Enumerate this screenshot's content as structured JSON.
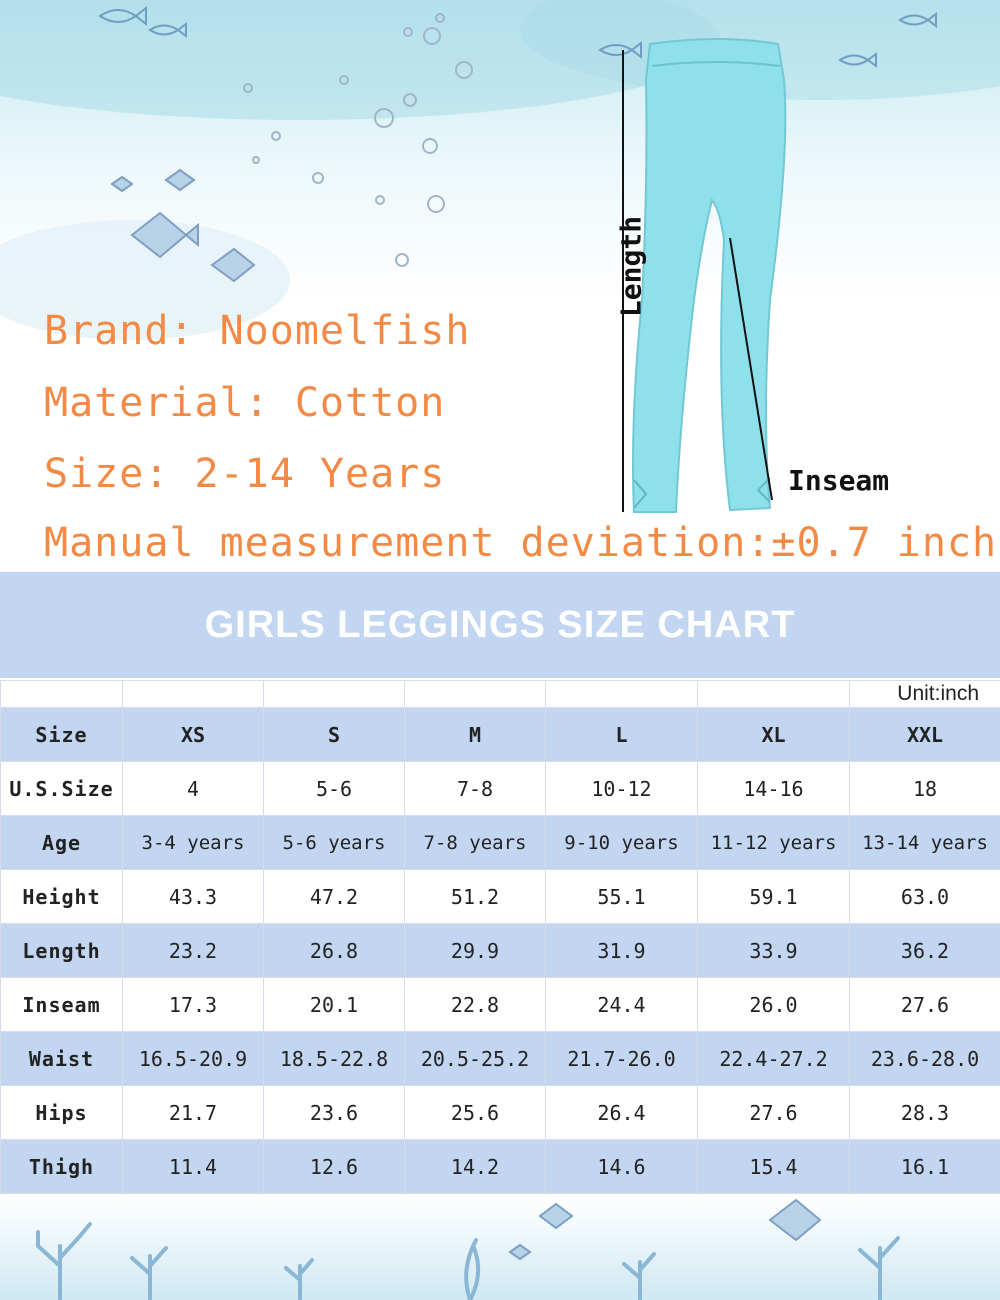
{
  "product_info": {
    "brand": "Brand: Noomelfish",
    "material": "Material: Cotton",
    "size": "Size: 2-14 Years",
    "deviation": "Manual measurement deviation:±0.7 inch"
  },
  "diagram": {
    "length_label": "Length",
    "inseam_label": "Inseam",
    "leggings_color": "#8ee0ea"
  },
  "chart": {
    "title": "GIRLS LEGGINGS SIZE CHART",
    "unit": "Unit:inch",
    "header": {
      "label": "Size",
      "values": [
        "XS",
        "S",
        "M",
        "L",
        "XL",
        "XXL"
      ]
    },
    "rows": [
      {
        "label": "U.S.Size",
        "values": [
          "4",
          "5-6",
          "7-8",
          "10-12",
          "14-16",
          "18"
        ]
      },
      {
        "label": "Age",
        "values": [
          "3-4 years",
          "5-6 years",
          "7-8 years",
          "9-10 years",
          "11-12 years",
          "13-14 years"
        ]
      },
      {
        "label": "Height",
        "values": [
          "43.3",
          "47.2",
          "51.2",
          "55.1",
          "59.1",
          "63.0"
        ]
      },
      {
        "label": "Length",
        "values": [
          "23.2",
          "26.8",
          "29.9",
          "31.9",
          "33.9",
          "36.2"
        ]
      },
      {
        "label": "Inseam",
        "values": [
          "17.3",
          "20.1",
          "22.8",
          "24.4",
          "26.0",
          "27.6"
        ]
      },
      {
        "label": "Waist",
        "values": [
          "16.5-20.9",
          "18.5-22.8",
          "20.5-25.2",
          "21.7-26.0",
          "22.4-27.2",
          "23.6-28.0"
        ]
      },
      {
        "label": "Hips",
        "values": [
          "21.7",
          "23.6",
          "25.6",
          "26.4",
          "27.6",
          "28.3"
        ]
      },
      {
        "label": "Thigh",
        "values": [
          "11.4",
          "12.6",
          "14.2",
          "14.6",
          "15.4",
          "16.1"
        ]
      }
    ]
  },
  "colors": {
    "info_text": "#f28a45",
    "table_shade": "#c3d6f1",
    "title_text": "#ffffff"
  }
}
